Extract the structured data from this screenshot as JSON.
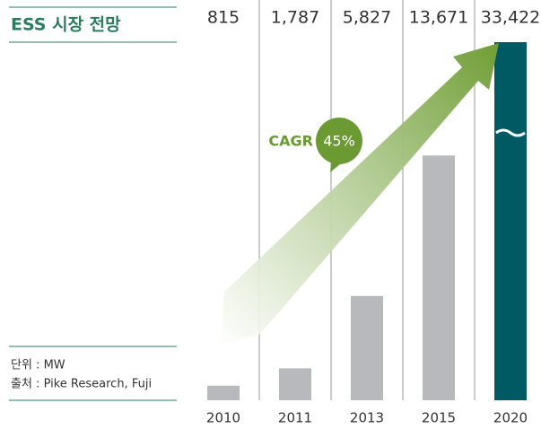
{
  "chart_data": {
    "type": "bar",
    "title": "ESS 시장 전망",
    "categories": [
      "2010",
      "2011",
      "2013",
      "2015",
      "2020"
    ],
    "values": [
      815,
      1787,
      5827,
      13671,
      33422
    ],
    "value_labels": [
      "815",
      "1,787",
      "5,827",
      "13,671",
      "33,422"
    ],
    "colors": [
      "#b8b9bc",
      "#b8b9bc",
      "#b8b9bc",
      "#b8b9bc",
      "#005a64"
    ],
    "ylim": [
      0,
      20000
    ],
    "annotations": {
      "cagr_label": "CAGR",
      "cagr_value": "45%"
    },
    "unit_note": "단위 : MW",
    "source_note": "출처 : Pike Research, Fuji"
  }
}
